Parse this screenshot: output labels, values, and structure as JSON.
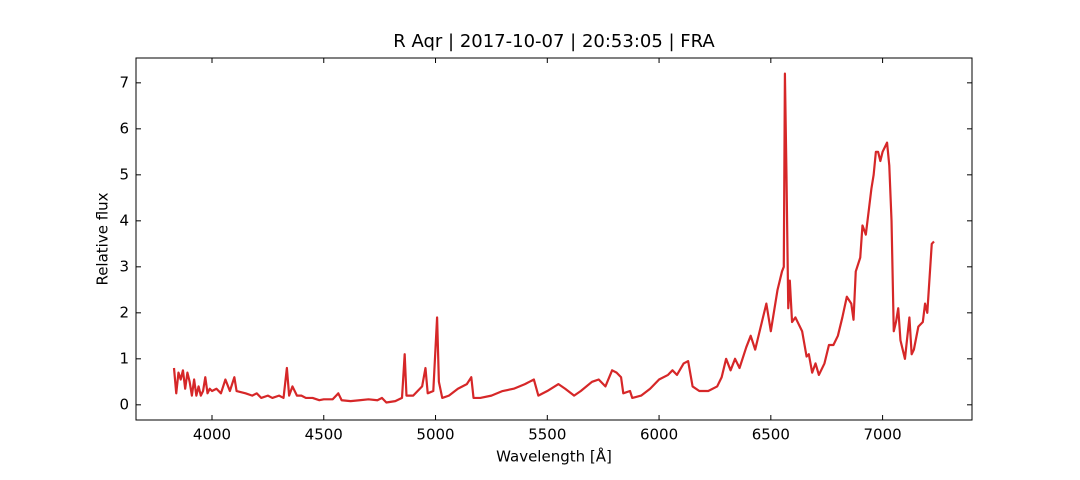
{
  "chart_data": {
    "type": "line",
    "title": "R Aqr | 2017-10-07 | 20:53:05 | FRA",
    "x_label": "Wavelength [Å]",
    "y_label": "Relative flux",
    "color": "#d62728",
    "xlim": [
      3660,
      7400
    ],
    "ylim": [
      -0.33,
      7.54
    ],
    "xticks": [
      4000,
      4500,
      5000,
      5500,
      6000,
      6500,
      7000
    ],
    "yticks": [
      0,
      1,
      2,
      3,
      4,
      5,
      6,
      7
    ],
    "x": [
      3830,
      3840,
      3850,
      3860,
      3870,
      3880,
      3890,
      3900,
      3910,
      3920,
      3930,
      3940,
      3950,
      3960,
      3970,
      3980,
      3990,
      4000,
      4020,
      4040,
      4060,
      4080,
      4100,
      4110,
      4150,
      4180,
      4200,
      4220,
      4250,
      4270,
      4300,
      4320,
      4335,
      4345,
      4360,
      4380,
      4400,
      4420,
      4450,
      4480,
      4500,
      4540,
      4565,
      4580,
      4620,
      4660,
      4700,
      4740,
      4760,
      4780,
      4820,
      4850,
      4862,
      4870,
      4900,
      4940,
      4955,
      4965,
      4990,
      5007,
      5015,
      5030,
      5060,
      5100,
      5140,
      5160,
      5170,
      5200,
      5250,
      5300,
      5350,
      5400,
      5420,
      5440,
      5460,
      5500,
      5550,
      5580,
      5620,
      5650,
      5700,
      5730,
      5760,
      5790,
      5810,
      5830,
      5840,
      5870,
      5880,
      5920,
      5960,
      6000,
      6040,
      6060,
      6080,
      6110,
      6130,
      6150,
      6180,
      6220,
      6260,
      6280,
      6300,
      6320,
      6340,
      6360,
      6390,
      6410,
      6430,
      6460,
      6480,
      6500,
      6530,
      6550,
      6558,
      6563,
      6570,
      6578,
      6585,
      6595,
      6610,
      6640,
      6660,
      6670,
      6685,
      6700,
      6715,
      6740,
      6760,
      6780,
      6800,
      6820,
      6840,
      6860,
      6870,
      6880,
      6900,
      6910,
      6925,
      6940,
      6950,
      6960,
      6970,
      6980,
      6990,
      7000,
      7010,
      7020,
      7030,
      7040,
      7050,
      7060,
      7070,
      7080,
      7100,
      7120,
      7130,
      7140,
      7160,
      7180,
      7190,
      7200,
      7220,
      7230
    ],
    "values": [
      0.8,
      0.25,
      0.7,
      0.55,
      0.75,
      0.35,
      0.7,
      0.5,
      0.2,
      0.55,
      0.2,
      0.4,
      0.2,
      0.3,
      0.6,
      0.25,
      0.35,
      0.3,
      0.35,
      0.25,
      0.55,
      0.3,
      0.6,
      0.3,
      0.25,
      0.2,
      0.25,
      0.15,
      0.2,
      0.15,
      0.2,
      0.15,
      0.8,
      0.2,
      0.4,
      0.2,
      0.2,
      0.15,
      0.15,
      0.1,
      0.12,
      0.12,
      0.25,
      0.1,
      0.08,
      0.1,
      0.12,
      0.1,
      0.15,
      0.05,
      0.08,
      0.15,
      1.1,
      0.2,
      0.2,
      0.4,
      0.8,
      0.25,
      0.3,
      1.9,
      0.5,
      0.15,
      0.2,
      0.35,
      0.45,
      0.6,
      0.15,
      0.15,
      0.2,
      0.3,
      0.35,
      0.45,
      0.5,
      0.55,
      0.2,
      0.3,
      0.45,
      0.35,
      0.2,
      0.3,
      0.5,
      0.55,
      0.4,
      0.75,
      0.7,
      0.6,
      0.25,
      0.3,
      0.15,
      0.2,
      0.35,
      0.55,
      0.65,
      0.75,
      0.65,
      0.9,
      0.95,
      0.4,
      0.3,
      0.3,
      0.4,
      0.6,
      1.0,
      0.75,
      1.0,
      0.8,
      1.25,
      1.5,
      1.2,
      1.8,
      2.2,
      1.6,
      2.5,
      2.9,
      3.0,
      7.2,
      5,
      2.1,
      2.7,
      1.8,
      1.9,
      1.6,
      1.05,
      1.1,
      0.7,
      0.9,
      0.65,
      0.9,
      1.3,
      1.3,
      1.5,
      1.9,
      2.35,
      2.2,
      1.85,
      2.9,
      3.2,
      3.9,
      3.7,
      4.3,
      4.7,
      5.0,
      5.5,
      5.5,
      5.3,
      5.5,
      5.6,
      5.7,
      5.2,
      4.0,
      1.6,
      1.8,
      2.1,
      1.4,
      1.0,
      1.9,
      1.1,
      1.2,
      1.7,
      1.8,
      2.2,
      2.0,
      3.5,
      3.55
    ]
  }
}
